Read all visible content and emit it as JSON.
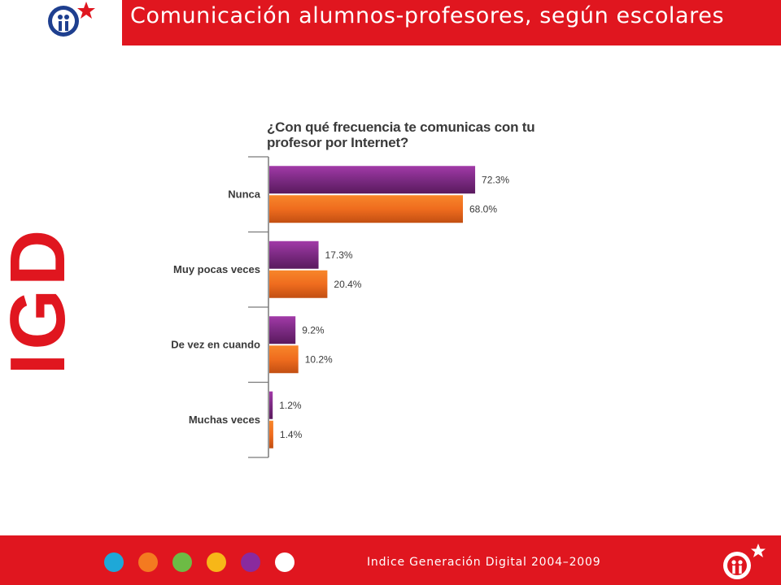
{
  "header": {
    "title": "Comunicación alumnos-profesores, según escolares"
  },
  "side_mark": "IGD",
  "footer": {
    "text": "Indice Generación Digital 2004–2009",
    "dot_colors": [
      "#1ea8d8",
      "#f47a20",
      "#6dbb45",
      "#f7b718",
      "#8a2a9e",
      "#ffffff"
    ]
  },
  "colors": {
    "brand_red": "#e0161f",
    "series_1": "#7b2a82",
    "series_2": "#ef6c1e"
  },
  "chart_data": {
    "type": "bar",
    "orientation": "horizontal",
    "title": "¿Con qué frecuencia te comunicas con tu profesor por Internet?",
    "categories": [
      "Nunca",
      "Muy pocas veces",
      "De vez en cuando",
      "Muchas veces"
    ],
    "series": [
      {
        "values": [
          72.3,
          17.3,
          9.2,
          1.2
        ],
        "labels": [
          "72.3%",
          "17.3%",
          "9.2%",
          "1.2%"
        ]
      },
      {
        "values": [
          68.0,
          20.4,
          10.2,
          1.4
        ],
        "labels": [
          "68.0%",
          "20.4%",
          "10.2%",
          "1.4%"
        ]
      }
    ],
    "xlim": [
      0,
      100
    ],
    "grid": false,
    "legend": "none"
  }
}
